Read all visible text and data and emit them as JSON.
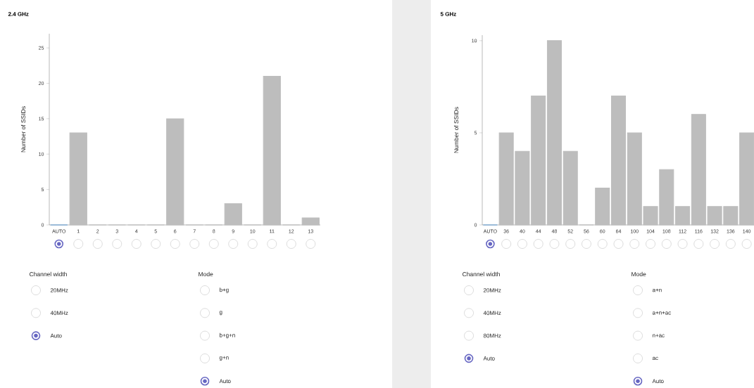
{
  "chart_data": [
    {
      "type": "bar",
      "title": "2.4 GHz",
      "ylabel": "Number of SSIDs",
      "categories": [
        "AUTO",
        "1",
        "2",
        "3",
        "4",
        "5",
        "6",
        "7",
        "8",
        "9",
        "10",
        "11",
        "12",
        "13"
      ],
      "values": [
        0,
        13,
        0,
        0,
        0,
        0,
        15,
        0,
        0,
        3,
        0,
        21,
        0,
        1
      ],
      "colors": [
        "#5b9bd5",
        "#bdbdbd",
        "#bdbdbd",
        "#bdbdbd",
        "#bdbdbd",
        "#bdbdbd",
        "#bdbdbd",
        "#bdbdbd",
        "#bdbdbd",
        "#bdbdbd",
        "#bdbdbd",
        "#bdbdbd",
        "#bdbdbd",
        "#bdbdbd"
      ],
      "ylim": [
        0,
        27
      ],
      "yticks": [
        0,
        5,
        10,
        15,
        20,
        25
      ],
      "annotations": [
        "Channel width",
        "20MHz",
        "40MHz",
        "Auto",
        "Mode",
        "b+g",
        "g",
        "b+g+n",
        "g+n",
        "Auto"
      ]
    },
    {
      "type": "bar",
      "title": "5 GHz",
      "ylabel": "Number of SSIDs",
      "categories": [
        "AUTO",
        "36",
        "40",
        "44",
        "48",
        "52",
        "56",
        "60",
        "64",
        "100",
        "104",
        "108",
        "112",
        "116",
        "132",
        "136",
        "140"
      ],
      "values": [
        0,
        5,
        4,
        7,
        10,
        4,
        0,
        2,
        7,
        5,
        1,
        3,
        1,
        6,
        1,
        1,
        5
      ],
      "colors": [
        "#5b9bd5",
        "#bdbdbd",
        "#bdbdbd",
        "#bdbdbd",
        "#bdbdbd",
        "#bdbdbd",
        "#bdbdbd",
        "#bdbdbd",
        "#bdbdbd",
        "#bdbdbd",
        "#bdbdbd",
        "#bdbdbd",
        "#bdbdbd",
        "#bdbdbd",
        "#bdbdbd",
        "#bdbdbd",
        "#bdbdbd"
      ],
      "ylim": [
        0,
        10.3
      ],
      "yticks": [
        0,
        5,
        10
      ],
      "annotations": [
        "Channel width",
        "20MHz",
        "40MHz",
        "80MHz",
        "Auto",
        "Mode",
        "a+n",
        "a+n+ac",
        "n+ac",
        "ac",
        "Auto"
      ]
    }
  ]
}
